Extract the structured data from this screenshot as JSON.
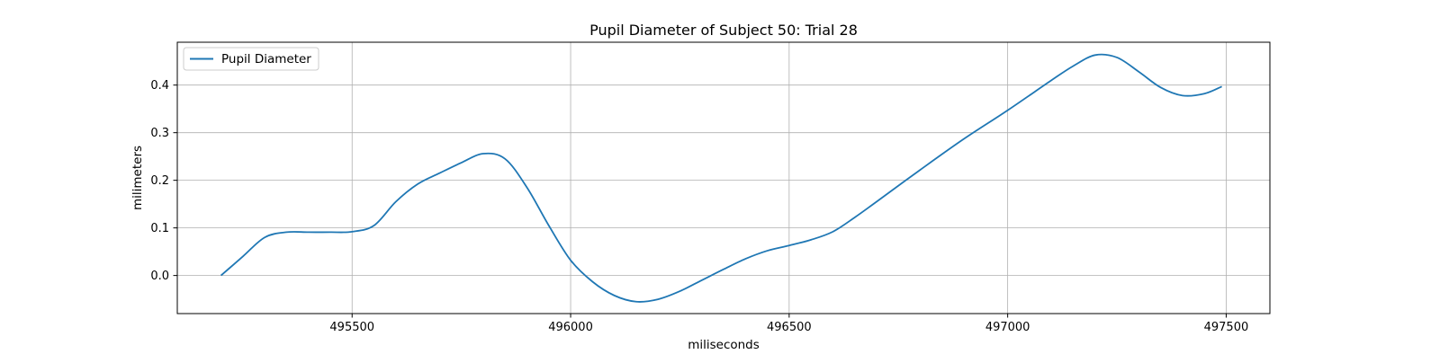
{
  "chart_data": {
    "type": "line",
    "title": "Pupil Diameter of Subject 50: Trial 28",
    "xlabel": "miliseconds",
    "ylabel": "milimeters",
    "xlim": [
      495100,
      497600
    ],
    "ylim": [
      -0.08,
      0.49
    ],
    "x_ticks": [
      495500,
      496000,
      496500,
      497000,
      497500
    ],
    "y_ticks": [
      0.0,
      0.1,
      0.2,
      0.3,
      0.4
    ],
    "y_tick_labels": [
      "0.0",
      "0.1",
      "0.2",
      "0.3",
      "0.4"
    ],
    "grid": true,
    "legend": {
      "position": "upper-left",
      "entries": [
        "Pupil Diameter"
      ]
    },
    "series": [
      {
        "name": "Pupil Diameter",
        "color": "#1f77b4",
        "x": [
          495200,
          495250,
          495300,
          495350,
          495400,
          495450,
          495500,
          495550,
          495600,
          495650,
          495700,
          495750,
          495800,
          495850,
          495900,
          495950,
          496000,
          496050,
          496100,
          496150,
          496200,
          496250,
          496300,
          496350,
          496400,
          496450,
          496500,
          496550,
          496600,
          496650,
          496700,
          496800,
          496900,
          497000,
          497100,
          497150,
          497200,
          497250,
          497300,
          497350,
          497400,
          497450,
          497490
        ],
        "y": [
          0.0,
          0.04,
          0.08,
          0.091,
          0.091,
          0.091,
          0.092,
          0.105,
          0.155,
          0.192,
          0.215,
          0.237,
          0.256,
          0.245,
          0.185,
          0.105,
          0.032,
          -0.013,
          -0.042,
          -0.055,
          -0.05,
          -0.033,
          -0.01,
          0.013,
          0.035,
          0.052,
          0.063,
          0.075,
          0.092,
          0.122,
          0.155,
          0.222,
          0.287,
          0.347,
          0.41,
          0.44,
          0.463,
          0.458,
          0.428,
          0.395,
          0.378,
          0.382,
          0.397
        ]
      }
    ]
  }
}
